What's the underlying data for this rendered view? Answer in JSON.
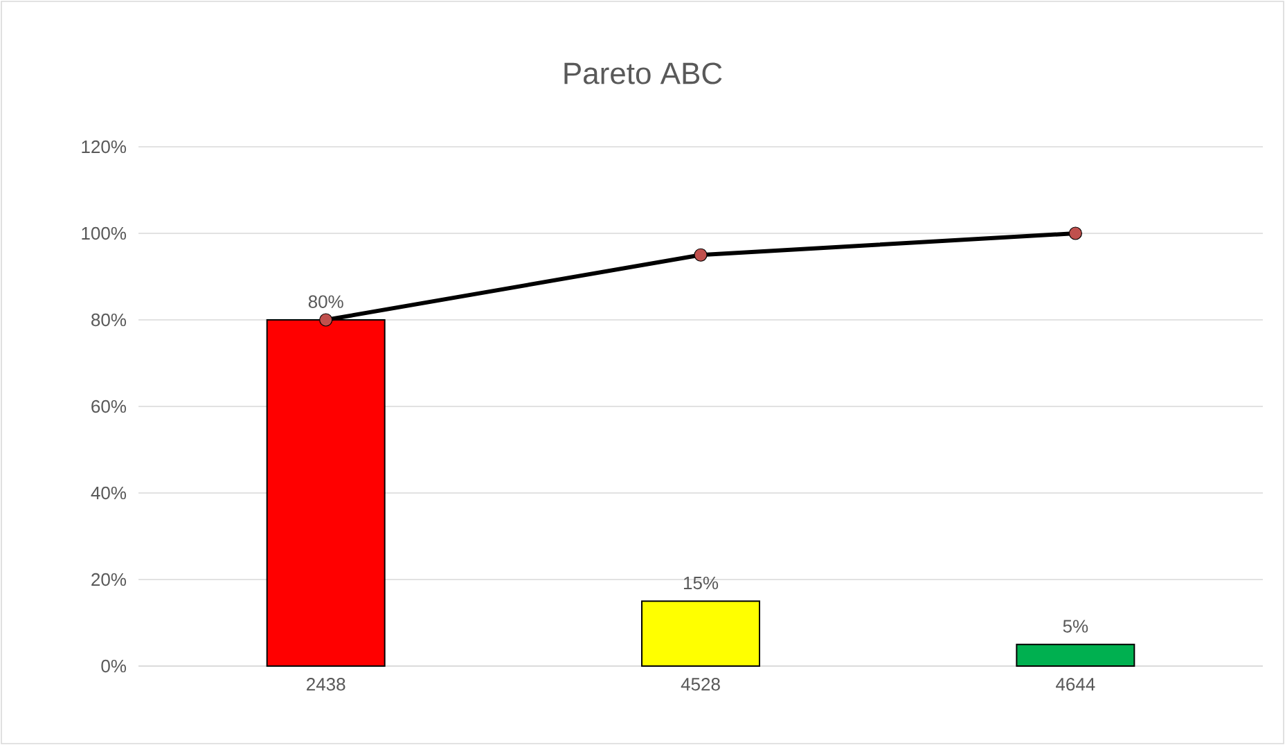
{
  "chart_data": {
    "type": "bar",
    "title": "Pareto ABC",
    "categories": [
      "2438",
      "4528",
      "4644"
    ],
    "series": [
      {
        "colors": [
          "#ff0000",
          "#ffff00",
          "#00b050"
        ],
        "values": [
          80,
          15,
          5
        ],
        "value_labels": [
          "80%",
          "15%",
          "5%"
        ]
      },
      {
        "type": "line",
        "color": "#000000",
        "colors": [
          "#c0504d",
          "#c0504d",
          "#c0504d"
        ],
        "marker": "circle",
        "line_style": "solid",
        "values": [
          80,
          95,
          100
        ]
      }
    ],
    "ylim": [
      0,
      120
    ],
    "yticks": [
      {
        "value": 0,
        "label": "0%"
      },
      {
        "value": 20,
        "label": "20%"
      },
      {
        "value": 40,
        "label": "40%"
      },
      {
        "value": 60,
        "label": "60%"
      },
      {
        "value": 80,
        "label": "80%"
      },
      {
        "value": 100,
        "label": "100%"
      },
      {
        "value": 120,
        "label": "120%"
      }
    ],
    "grid": "y"
  }
}
